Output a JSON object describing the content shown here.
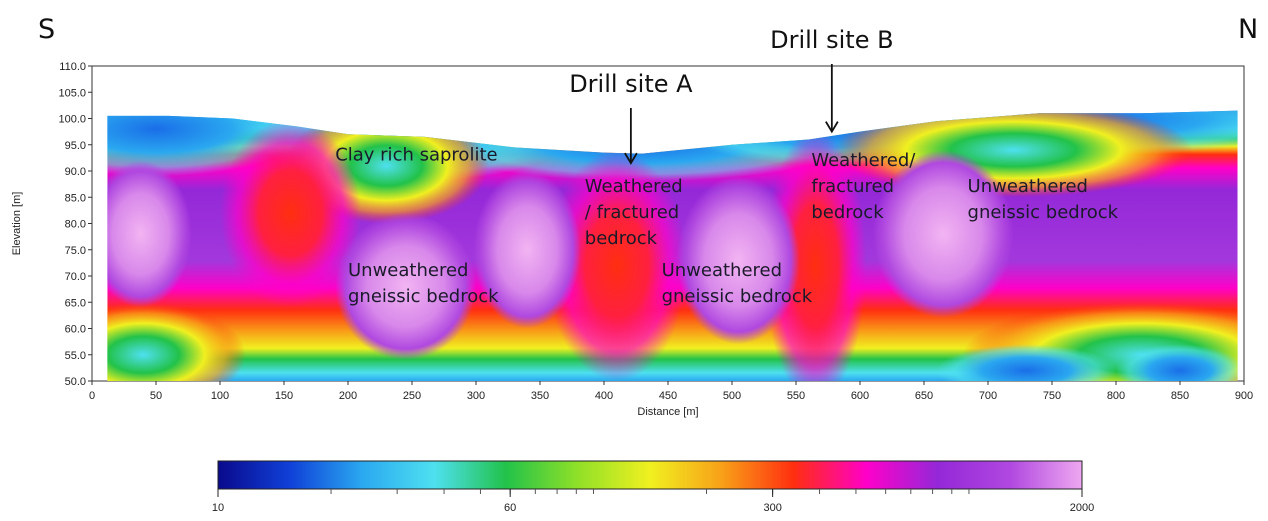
{
  "chart_data": {
    "type": "heatmap",
    "title": "",
    "orientation_left": "S",
    "orientation_right": "N",
    "xlabel": "Distance [m]",
    "ylabel": "Elevation [m]",
    "xlim": [
      0,
      900
    ],
    "ylim": [
      50,
      110
    ],
    "xticks": [
      "0",
      "50",
      "100",
      "150",
      "200",
      "250",
      "300",
      "350",
      "400",
      "450",
      "500",
      "550",
      "600",
      "650",
      "700",
      "750",
      "800",
      "850",
      "900"
    ],
    "yticks": [
      "110.0",
      "105.0",
      "100.0",
      "95.0",
      "90.0",
      "85.0",
      "80.0",
      "75.0",
      "70.0",
      "65.0",
      "60.0",
      "55.0",
      "50.0"
    ],
    "surface_profile": [
      {
        "x": 12,
        "y": 100.5
      },
      {
        "x": 60,
        "y": 100.5
      },
      {
        "x": 110,
        "y": 100.0
      },
      {
        "x": 160,
        "y": 98.5
      },
      {
        "x": 200,
        "y": 97.0
      },
      {
        "x": 260,
        "y": 96.5
      },
      {
        "x": 330,
        "y": 94.5
      },
      {
        "x": 400,
        "y": 93.5
      },
      {
        "x": 430,
        "y": 93.3
      },
      {
        "x": 500,
        "y": 95.0
      },
      {
        "x": 560,
        "y": 96.0
      },
      {
        "x": 600,
        "y": 97.5
      },
      {
        "x": 660,
        "y": 99.5
      },
      {
        "x": 740,
        "y": 101.0
      },
      {
        "x": 820,
        "y": 101.0
      },
      {
        "x": 895,
        "y": 101.5
      }
    ],
    "colorbar": {
      "min": 10,
      "max": 2000,
      "scale": "log",
      "tick_labels": [
        "10",
        "60",
        "300",
        "2000"
      ],
      "tick_values": [
        10,
        60,
        300,
        2000
      ],
      "colors": [
        "#0a0a8c",
        "#1040d8",
        "#2aa8f0",
        "#4ee0f0",
        "#22c24a",
        "#90e028",
        "#f0f020",
        "#f8a018",
        "#ff2e10",
        "#ff00c8",
        "#9428d8",
        "#b048e0",
        "#eea8f0"
      ]
    },
    "zones": [
      {
        "label": "Clay rich saprolite",
        "x": 190,
        "y": 92
      },
      {
        "label": "Weathered / fractured bedrock",
        "x": 385,
        "y": 86
      },
      {
        "label": "Weathered/ fractured bedrock",
        "x": 562,
        "y": 91
      },
      {
        "label": "Unweathered gneissic bedrock",
        "x": 200,
        "y": 70
      },
      {
        "label": "Unweathered gneissic bedrock",
        "x": 445,
        "y": 70
      },
      {
        "label": "Unweathered gneissic bedrock",
        "x": 684,
        "y": 86
      }
    ],
    "annotations": [
      {
        "label": "Drill site A",
        "x": 421,
        "arrow_tip_y": 91.5
      },
      {
        "label": "Drill site B",
        "x": 578,
        "arrow_tip_y": 97.5
      }
    ]
  }
}
